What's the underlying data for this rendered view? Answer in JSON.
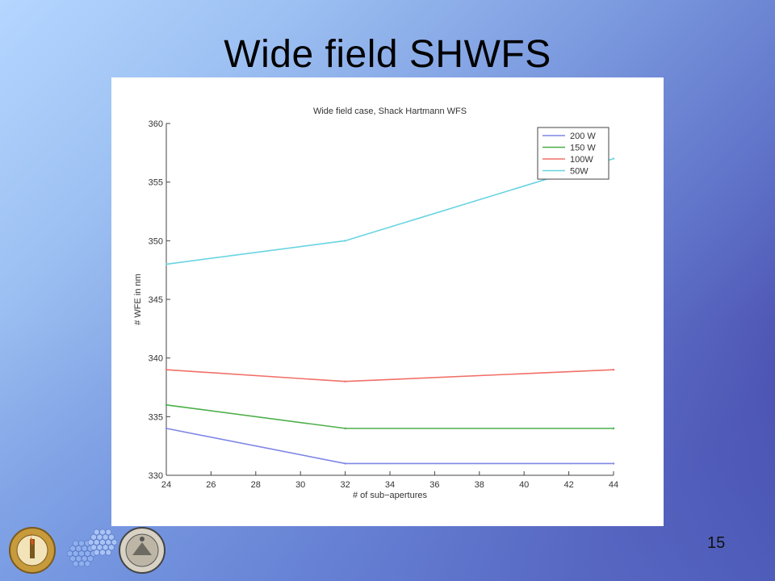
{
  "slide": {
    "title": "Wide field SHWFS",
    "page_number": "15"
  },
  "logos": [
    {
      "name": "caltech-seal",
      "text": "CALIFORNIA INSTITUTE OF TECHNOLOGY"
    },
    {
      "name": "tmt-mirror-segments"
    },
    {
      "name": "uc-seal",
      "text": "THE UNIVERSITY OF CALIFORNIA"
    }
  ],
  "colors": {
    "200 W": "#7f86e6",
    "150 W": "#4daf4a",
    "100W": "#f07068",
    "50W": "#69d4e0"
  },
  "chart_data": {
    "type": "line",
    "title": "Wide field case, Shack Hartmann WFS",
    "xlabel": "# of sub−apertures",
    "ylabel": "# WFE in nm",
    "xlim": [
      24,
      44
    ],
    "ylim": [
      330,
      360
    ],
    "xticks": [
      24,
      26,
      28,
      30,
      32,
      34,
      36,
      38,
      40,
      42,
      44
    ],
    "yticks": [
      330,
      335,
      340,
      345,
      350,
      355,
      360
    ],
    "legend_position": "top-right",
    "grid": false,
    "x": [
      24,
      32,
      44
    ],
    "series": [
      {
        "name": "200 W",
        "values": [
          334,
          331,
          331
        ]
      },
      {
        "name": "150 W",
        "values": [
          336,
          334,
          334
        ]
      },
      {
        "name": "100W",
        "values": [
          339,
          338,
          339
        ]
      },
      {
        "name": "50W",
        "values": [
          348,
          350,
          357
        ]
      }
    ]
  }
}
